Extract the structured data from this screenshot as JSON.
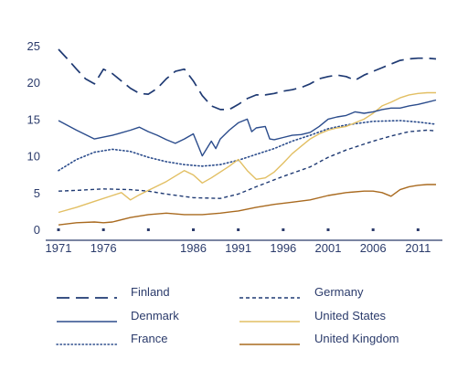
{
  "chart_data": {
    "type": "line",
    "title": "",
    "xlabel": "",
    "ylabel": "",
    "xlim": [
      1971,
      2013
    ],
    "ylim": [
      0,
      25
    ],
    "x_ticks": [
      1971,
      1976,
      1981,
      1986,
      1991,
      1996,
      2001,
      2006,
      2011
    ],
    "x_tick_labels": [
      "1971",
      "1976",
      "",
      "1986",
      "1991",
      "1996",
      "2001",
      "2006",
      "2011"
    ],
    "y_ticks": [
      0,
      5,
      10,
      15,
      20,
      25
    ],
    "grid": false,
    "legend_position": "bottom",
    "series": [
      {
        "name": "Finland",
        "color": "#1f3a73",
        "dash": "long-dash",
        "points": [
          [
            1971,
            24.5
          ],
          [
            1972,
            23.2
          ],
          [
            1973,
            21.8
          ],
          [
            1974,
            20.5
          ],
          [
            1975,
            19.8
          ],
          [
            1976,
            21.8
          ],
          [
            1977,
            21.2
          ],
          [
            1978,
            20.2
          ],
          [
            1979,
            19.2
          ],
          [
            1980,
            18.5
          ],
          [
            1981,
            18.4
          ],
          [
            1982,
            19.2
          ],
          [
            1983,
            20.5
          ],
          [
            1984,
            21.5
          ],
          [
            1985,
            21.8
          ],
          [
            1986,
            20.2
          ],
          [
            1987,
            18.2
          ],
          [
            1988,
            16.8
          ],
          [
            1989,
            16.3
          ],
          [
            1990,
            16.3
          ],
          [
            1991,
            17.0
          ],
          [
            1992,
            17.8
          ],
          [
            1993,
            18.3
          ],
          [
            1994,
            18.3
          ],
          [
            1995,
            18.5
          ],
          [
            1996,
            18.8
          ],
          [
            1997,
            19.0
          ],
          [
            1998,
            19.3
          ],
          [
            1999,
            19.8
          ],
          [
            2000,
            20.5
          ],
          [
            2001,
            20.8
          ],
          [
            2002,
            21.0
          ],
          [
            2003,
            20.8
          ],
          [
            2004,
            20.3
          ],
          [
            2005,
            21.0
          ],
          [
            2006,
            21.5
          ],
          [
            2007,
            22.0
          ],
          [
            2008,
            22.5
          ],
          [
            2009,
            23.0
          ],
          [
            2010,
            23.2
          ],
          [
            2011,
            23.3
          ],
          [
            2012,
            23.3
          ],
          [
            2013,
            23.2
          ]
        ]
      },
      {
        "name": "Germany",
        "color": "#1f3a73",
        "dash": "short-dash",
        "points": [
          [
            1971,
            5.2
          ],
          [
            1973,
            5.3
          ],
          [
            1976,
            5.5
          ],
          [
            1979,
            5.4
          ],
          [
            1981,
            5.2
          ],
          [
            1983,
            4.8
          ],
          [
            1986,
            4.3
          ],
          [
            1989,
            4.2
          ],
          [
            1991,
            4.8
          ],
          [
            1993,
            5.8
          ],
          [
            1996,
            7.2
          ],
          [
            1999,
            8.5
          ],
          [
            2001,
            9.8
          ],
          [
            2003,
            10.8
          ],
          [
            2006,
            12.0
          ],
          [
            2008,
            12.7
          ],
          [
            2010,
            13.3
          ],
          [
            2012,
            13.5
          ],
          [
            2013,
            13.4
          ]
        ]
      },
      {
        "name": "Denmark",
        "color": "#2b4c8c",
        "dash": "solid",
        "points": [
          [
            1971,
            14.8
          ],
          [
            1973,
            13.5
          ],
          [
            1975,
            12.3
          ],
          [
            1977,
            12.8
          ],
          [
            1979,
            13.5
          ],
          [
            1980,
            13.9
          ],
          [
            1981,
            13.3
          ],
          [
            1982,
            12.8
          ],
          [
            1983,
            12.2
          ],
          [
            1984,
            11.7
          ],
          [
            1985,
            12.3
          ],
          [
            1986,
            13.0
          ],
          [
            1987,
            10.0
          ],
          [
            1988,
            12.0
          ],
          [
            1988.5,
            11.0
          ],
          [
            1989,
            12.3
          ],
          [
            1990,
            13.5
          ],
          [
            1991,
            14.5
          ],
          [
            1992,
            15.0
          ],
          [
            1992.5,
            13.3
          ],
          [
            1993,
            13.8
          ],
          [
            1994,
            14.0
          ],
          [
            1994.5,
            12.3
          ],
          [
            1995,
            12.2
          ],
          [
            1996,
            12.5
          ],
          [
            1997,
            12.8
          ],
          [
            1998,
            12.9
          ],
          [
            1999,
            13.2
          ],
          [
            2000,
            14.0
          ],
          [
            2001,
            15.0
          ],
          [
            2002,
            15.3
          ],
          [
            2003,
            15.5
          ],
          [
            2004,
            16.0
          ],
          [
            2005,
            15.8
          ],
          [
            2006,
            16.0
          ],
          [
            2007,
            16.3
          ],
          [
            2008,
            16.5
          ],
          [
            2009,
            16.5
          ],
          [
            2010,
            16.8
          ],
          [
            2011,
            17.0
          ],
          [
            2012,
            17.3
          ],
          [
            2013,
            17.6
          ]
        ]
      },
      {
        "name": "United States",
        "color": "#e2bf63",
        "dash": "solid",
        "points": [
          [
            1971,
            2.3
          ],
          [
            1973,
            3.0
          ],
          [
            1975,
            3.8
          ],
          [
            1977,
            4.6
          ],
          [
            1978,
            5.0
          ],
          [
            1979,
            4.0
          ],
          [
            1980,
            4.7
          ],
          [
            1981,
            5.3
          ],
          [
            1983,
            6.5
          ],
          [
            1985,
            8.0
          ],
          [
            1986,
            7.4
          ],
          [
            1987,
            6.3
          ],
          [
            1988,
            7.0
          ],
          [
            1989,
            7.8
          ],
          [
            1990,
            8.6
          ],
          [
            1991,
            9.5
          ],
          [
            1992,
            8.0
          ],
          [
            1993,
            6.8
          ],
          [
            1994,
            7.0
          ],
          [
            1995,
            7.8
          ],
          [
            1996,
            9.0
          ],
          [
            1997,
            10.3
          ],
          [
            1998,
            11.3
          ],
          [
            1999,
            12.3
          ],
          [
            2000,
            13.0
          ],
          [
            2001,
            13.5
          ],
          [
            2002,
            13.8
          ],
          [
            2003,
            14.0
          ],
          [
            2004,
            14.5
          ],
          [
            2005,
            15.0
          ],
          [
            2006,
            15.8
          ],
          [
            2007,
            16.8
          ],
          [
            2008,
            17.3
          ],
          [
            2009,
            17.9
          ],
          [
            2010,
            18.3
          ],
          [
            2011,
            18.5
          ],
          [
            2012,
            18.6
          ],
          [
            2013,
            18.6
          ]
        ]
      },
      {
        "name": "France",
        "color": "#2b4c8c",
        "dash": "dotted",
        "points": [
          [
            1971,
            8.0
          ],
          [
            1973,
            9.5
          ],
          [
            1975,
            10.5
          ],
          [
            1977,
            10.9
          ],
          [
            1979,
            10.6
          ],
          [
            1981,
            9.8
          ],
          [
            1983,
            9.2
          ],
          [
            1985,
            8.8
          ],
          [
            1987,
            8.6
          ],
          [
            1989,
            8.8
          ],
          [
            1991,
            9.4
          ],
          [
            1993,
            10.2
          ],
          [
            1995,
            11.0
          ],
          [
            1997,
            12.0
          ],
          [
            1999,
            12.8
          ],
          [
            2001,
            13.7
          ],
          [
            2003,
            14.2
          ],
          [
            2006,
            14.7
          ],
          [
            2009,
            14.8
          ],
          [
            2011,
            14.6
          ],
          [
            2013,
            14.3
          ]
        ]
      },
      {
        "name": "United Kingdom",
        "color": "#a96a1f",
        "dash": "solid",
        "points": [
          [
            1971,
            0.6
          ],
          [
            1973,
            0.9
          ],
          [
            1975,
            1.0
          ],
          [
            1976,
            0.9
          ],
          [
            1977,
            1.0
          ],
          [
            1979,
            1.6
          ],
          [
            1981,
            2.0
          ],
          [
            1983,
            2.2
          ],
          [
            1985,
            2.0
          ],
          [
            1987,
            2.0
          ],
          [
            1989,
            2.2
          ],
          [
            1991,
            2.5
          ],
          [
            1993,
            3.0
          ],
          [
            1995,
            3.4
          ],
          [
            1997,
            3.7
          ],
          [
            1999,
            4.0
          ],
          [
            2001,
            4.6
          ],
          [
            2003,
            5.0
          ],
          [
            2005,
            5.2
          ],
          [
            2006,
            5.2
          ],
          [
            2007,
            5.0
          ],
          [
            2008,
            4.5
          ],
          [
            2009,
            5.4
          ],
          [
            2010,
            5.8
          ],
          [
            2011,
            6.0
          ],
          [
            2012,
            6.1
          ],
          [
            2013,
            6.1
          ]
        ]
      }
    ]
  },
  "legend_layout": [
    [
      "Finland",
      "Germany"
    ],
    [
      "Denmark",
      "United States"
    ],
    [
      "France",
      "United Kingdom"
    ]
  ]
}
